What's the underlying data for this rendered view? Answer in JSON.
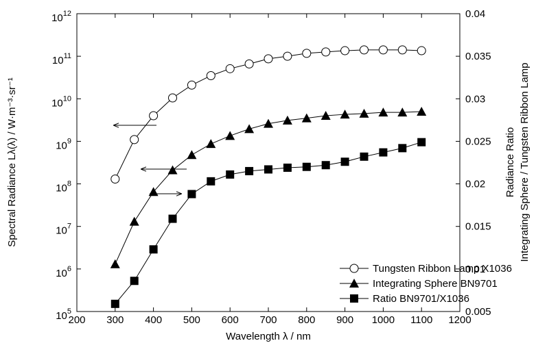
{
  "chart_data": {
    "type": "line",
    "xlabel": "Wavelength λ / nm",
    "ylabel": "Spectral Radiance Lλ(λ) / W·m⁻³·sr⁻¹",
    "y2label": [
      "Radiance Ratio",
      "Integrating Sphere / Tungsten Ribbon Lamp"
    ],
    "x": [
      300,
      350,
      400,
      450,
      500,
      550,
      600,
      650,
      700,
      750,
      800,
      850,
      900,
      950,
      1000,
      1050,
      1100
    ],
    "xlim": [
      200,
      1200
    ],
    "xticks": [
      200,
      300,
      400,
      500,
      600,
      700,
      800,
      900,
      1000,
      1100,
      1200
    ],
    "ylim": [
      100000,
      1000000000000
    ],
    "yscale": "log",
    "yticks": [
      {
        "value": 100000,
        "label": "10",
        "sup": "5"
      },
      {
        "value": 1000000,
        "label": "10",
        "sup": "6"
      },
      {
        "value": 10000000,
        "label": "10",
        "sup": "7"
      },
      {
        "value": 100000000,
        "label": "10",
        "sup": "8"
      },
      {
        "value": 1000000000,
        "label": "10",
        "sup": "9"
      },
      {
        "value": 10000000000,
        "label": "10",
        "sup": "10"
      },
      {
        "value": 100000000000,
        "label": "10",
        "sup": "11"
      },
      {
        "value": 1000000000000,
        "label": "10",
        "sup": "12"
      }
    ],
    "y2lim": [
      0.005,
      0.04
    ],
    "y2ticks": [
      0.005,
      0.01,
      0.015,
      0.02,
      0.025,
      0.03,
      0.035,
      0.04
    ],
    "legend": "lower right",
    "series": [
      {
        "name": "Tungsten Ribbon Lamp X1036",
        "color": "#000000",
        "marker": "open-circle",
        "values": [
          130000000.0,
          1100000000.0,
          4000000000.0,
          10500000000.0,
          21000000000.0,
          35000000000.0,
          51000000000.0,
          66000000000.0,
          87000000000.0,
          100000000000.0,
          117000000000.0,
          126000000000.0,
          135000000000.0,
          141000000000.0,
          141000000000.0,
          141000000000.0,
          135000000000.0
        ]
      },
      {
        "name": "Integrating Sphere BN9701",
        "color": "#000000",
        "marker": "triangle",
        "values": [
          1300000.0,
          13000000.0,
          65000000.0,
          210000000.0,
          480000000.0,
          870000000.0,
          1350000000.0,
          1950000000.0,
          2600000000.0,
          3100000000.0,
          3500000000.0,
          4000000000.0,
          4300000000.0,
          4500000000.0,
          4800000000.0,
          4800000000.0,
          5000000000.0
        ]
      },
      {
        "name": "Ratio BN9701/X1036",
        "color": "#000000",
        "marker": "square",
        "axis": "y2",
        "values": [
          0.0059,
          0.0086,
          0.0123,
          0.0159,
          0.0188,
          0.0203,
          0.0211,
          0.0215,
          0.0217,
          0.0219,
          0.022,
          0.0222,
          0.0226,
          0.0232,
          0.0237,
          0.0242,
          0.0249
        ]
      }
    ]
  }
}
